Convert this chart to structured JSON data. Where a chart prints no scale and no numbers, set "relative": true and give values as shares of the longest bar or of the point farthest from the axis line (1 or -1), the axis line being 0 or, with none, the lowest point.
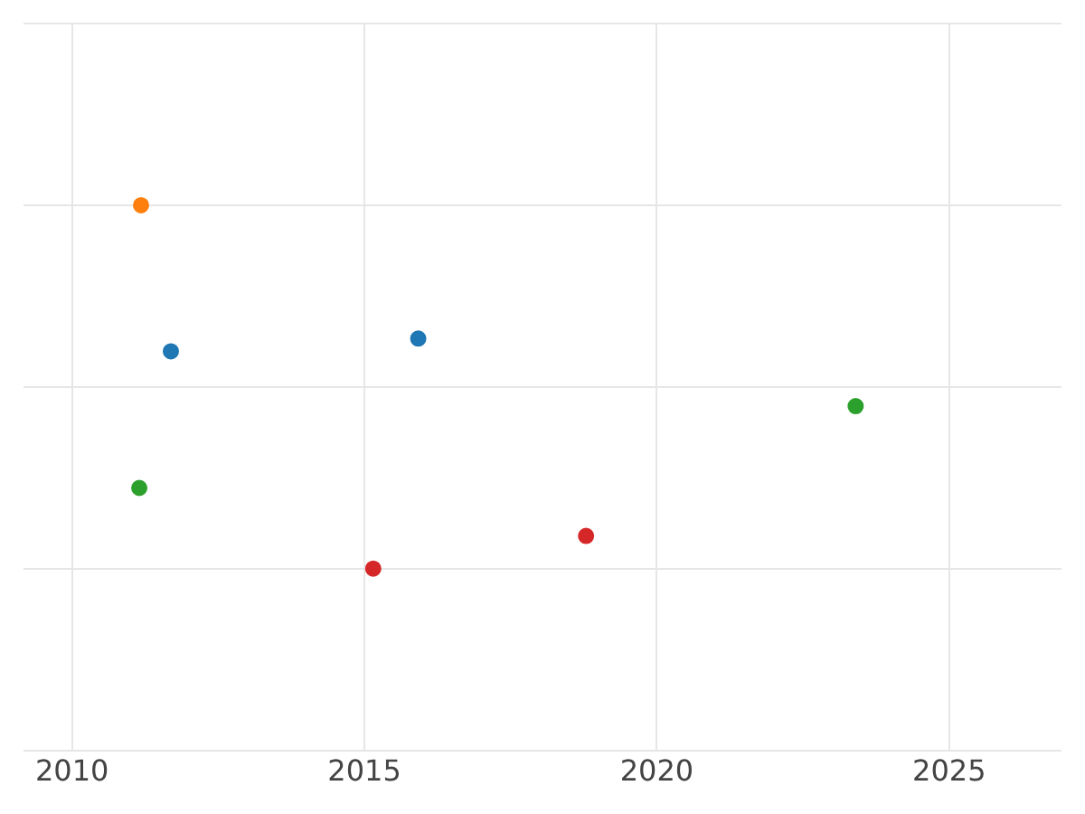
{
  "chart_data": {
    "type": "scatter",
    "relative": true,
    "xlim": [
      2009.17,
      2026.92
    ],
    "xticks": [
      2010,
      2015,
      2020,
      2025
    ],
    "series": [
      {
        "color": "#1f77b4",
        "x": [
          2011.69,
          2015.92
        ],
        "values": [
          0.598,
          0.633
        ]
      },
      {
        "color": "#ff7f0e",
        "x": [
          2011.18
        ],
        "values": [
          1
        ]
      },
      {
        "color": "#2ca02c",
        "x": [
          2023.4,
          2011.15
        ],
        "values": [
          0.447,
          0.222
        ]
      },
      {
        "color": "#d62728",
        "x": [
          2015.15,
          2018.79
        ],
        "values": [
          0,
          0.09
        ]
      }
    ],
    "grid": true,
    "legend": false,
    "marker": "circle"
  }
}
